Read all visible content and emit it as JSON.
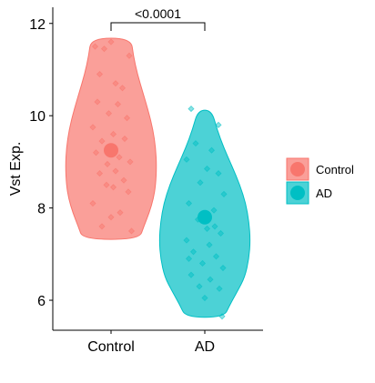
{
  "chart_data": {
    "type": "violin",
    "ylabel": "Vst Exp.",
    "xlabel": "",
    "categories": [
      "Control",
      "AD"
    ],
    "ylim": [
      5.35,
      12.35
    ],
    "yticks": [
      6,
      8,
      10,
      12
    ],
    "grid": false,
    "legend": {
      "position": "right",
      "entries": [
        "Control",
        "AD"
      ]
    },
    "annotation": {
      "text": "<0.0001",
      "between": [
        "Control",
        "AD"
      ]
    },
    "colors": {
      "Control": "#F8766D",
      "AD": "#00BFC4"
    },
    "series": [
      {
        "name": "Control",
        "mean": 9.25,
        "min": 7.32,
        "max": 11.68,
        "density": [
          [
            7.32,
            0.62
          ],
          [
            7.6,
            0.72
          ],
          [
            7.9,
            0.84
          ],
          [
            8.2,
            0.93
          ],
          [
            8.5,
            0.98
          ],
          [
            8.9,
            1.0
          ],
          [
            9.3,
            0.98
          ],
          [
            9.7,
            0.92
          ],
          [
            10.1,
            0.82
          ],
          [
            10.5,
            0.7
          ],
          [
            10.9,
            0.58
          ],
          [
            11.3,
            0.49
          ],
          [
            11.68,
            0.44
          ]
        ],
        "points": [
          [
            -0.35,
            11.5
          ],
          [
            0.0,
            11.6
          ],
          [
            -0.15,
            11.45
          ],
          [
            0.4,
            11.3
          ],
          [
            -0.25,
            10.9
          ],
          [
            0.1,
            10.7
          ],
          [
            0.25,
            10.6
          ],
          [
            -0.3,
            10.3
          ],
          [
            0.15,
            10.25
          ],
          [
            -0.05,
            10.05
          ],
          [
            0.35,
            9.95
          ],
          [
            -0.4,
            9.75
          ],
          [
            0.05,
            9.6
          ],
          [
            0.3,
            9.5
          ],
          [
            -0.2,
            9.45
          ],
          [
            0.18,
            9.1
          ],
          [
            -0.33,
            9.2
          ],
          [
            -0.08,
            8.95
          ],
          [
            0.42,
            9.0
          ],
          [
            0.1,
            8.8
          ],
          [
            -0.25,
            8.75
          ],
          [
            0.28,
            8.6
          ],
          [
            -0.1,
            8.5
          ],
          [
            0.05,
            8.45
          ],
          [
            0.38,
            8.35
          ],
          [
            -0.4,
            8.1
          ],
          [
            0.2,
            7.9
          ],
          [
            -0.2,
            7.6
          ],
          [
            0.45,
            7.5
          ],
          [
            0.0,
            7.8
          ]
        ]
      },
      {
        "name": "AD",
        "mean": 7.8,
        "min": 5.63,
        "max": 10.12,
        "density": [
          [
            5.63,
            0.42
          ],
          [
            5.9,
            0.55
          ],
          [
            6.2,
            0.72
          ],
          [
            6.5,
            0.88
          ],
          [
            6.9,
            0.97
          ],
          [
            7.3,
            1.0
          ],
          [
            7.7,
            0.97
          ],
          [
            8.1,
            0.9
          ],
          [
            8.5,
            0.77
          ],
          [
            8.9,
            0.6
          ],
          [
            9.3,
            0.42
          ],
          [
            9.7,
            0.27
          ],
          [
            10.12,
            0.15
          ]
        ],
        "points": [
          [
            -0.3,
            10.15
          ],
          [
            0.3,
            9.8
          ],
          [
            -0.2,
            9.4
          ],
          [
            0.15,
            9.25
          ],
          [
            -0.4,
            9.05
          ],
          [
            0.05,
            8.85
          ],
          [
            0.3,
            8.75
          ],
          [
            -0.1,
            8.55
          ],
          [
            0.42,
            8.3
          ],
          [
            -0.35,
            8.1
          ],
          [
            0.2,
            7.95
          ],
          [
            -0.15,
            7.75
          ],
          [
            0.05,
            7.55
          ],
          [
            0.35,
            7.45
          ],
          [
            -0.4,
            7.3
          ],
          [
            0.1,
            7.2
          ],
          [
            -0.25,
            7.05
          ],
          [
            0.25,
            6.95
          ],
          [
            -0.05,
            6.8
          ],
          [
            0.4,
            6.7
          ],
          [
            -0.3,
            6.55
          ],
          [
            0.12,
            6.45
          ],
          [
            -0.12,
            6.3
          ],
          [
            0.32,
            6.25
          ],
          [
            0.0,
            6.05
          ],
          [
            0.38,
            5.65
          ],
          [
            -0.35,
            6.9
          ],
          [
            0.22,
            7.6
          ]
        ]
      }
    ]
  }
}
